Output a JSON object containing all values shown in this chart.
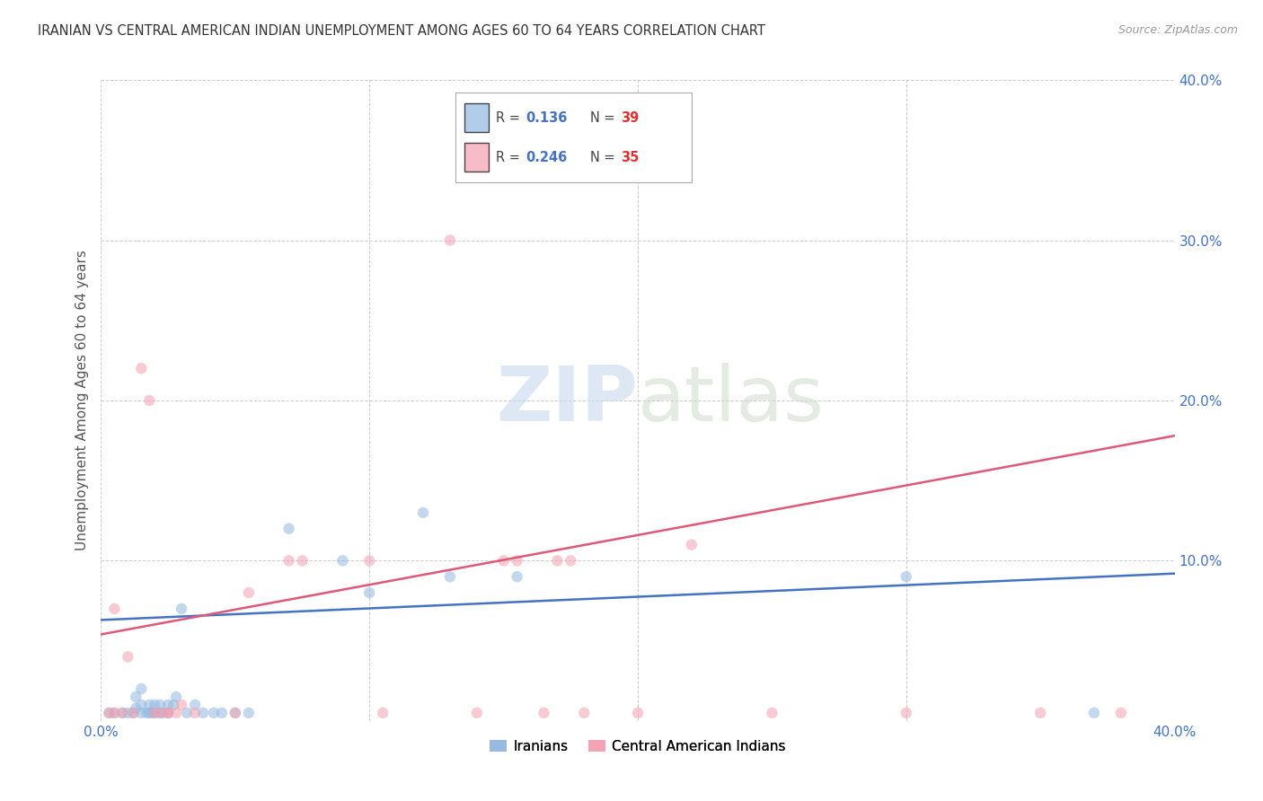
{
  "title": "IRANIAN VS CENTRAL AMERICAN INDIAN UNEMPLOYMENT AMONG AGES 60 TO 64 YEARS CORRELATION CHART",
  "source": "Source: ZipAtlas.com",
  "ylabel": "Unemployment Among Ages 60 to 64 years",
  "xlim": [
    0.0,
    0.4
  ],
  "ylim": [
    0.0,
    0.4
  ],
  "background_color": "#ffffff",
  "grid_color": "#cccccc",
  "iranian_color": "#92b8e0",
  "cai_color": "#f4a0b0",
  "iranian_line_color": "#4472c4",
  "cai_line_color": "#e05878",
  "r_color": "#4472c4",
  "n_color": "#e03030",
  "legend_r_iranian": "0.136",
  "legend_n_iranian": "39",
  "legend_r_cai": "0.246",
  "legend_n_cai": "35",
  "iranian_x": [
    0.003,
    0.005,
    0.008,
    0.01,
    0.012,
    0.013,
    0.013,
    0.015,
    0.015,
    0.015,
    0.017,
    0.018,
    0.018,
    0.019,
    0.02,
    0.02,
    0.022,
    0.022,
    0.023,
    0.025,
    0.025,
    0.027,
    0.028,
    0.03,
    0.032,
    0.035,
    0.038,
    0.042,
    0.045,
    0.05,
    0.055,
    0.07,
    0.09,
    0.1,
    0.12,
    0.13,
    0.155,
    0.3,
    0.37
  ],
  "iranian_y": [
    0.005,
    0.005,
    0.005,
    0.005,
    0.005,
    0.008,
    0.015,
    0.005,
    0.01,
    0.02,
    0.005,
    0.005,
    0.01,
    0.005,
    0.005,
    0.01,
    0.005,
    0.01,
    0.005,
    0.005,
    0.01,
    0.01,
    0.015,
    0.07,
    0.005,
    0.01,
    0.005,
    0.005,
    0.005,
    0.005,
    0.005,
    0.12,
    0.1,
    0.08,
    0.13,
    0.09,
    0.09,
    0.09,
    0.005
  ],
  "cai_x": [
    0.003,
    0.005,
    0.005,
    0.008,
    0.01,
    0.012,
    0.015,
    0.018,
    0.02,
    0.022,
    0.025,
    0.025,
    0.028,
    0.03,
    0.035,
    0.05,
    0.055,
    0.07,
    0.075,
    0.1,
    0.105,
    0.13,
    0.14,
    0.15,
    0.155,
    0.165,
    0.17,
    0.175,
    0.18,
    0.2,
    0.22,
    0.25,
    0.3,
    0.35,
    0.38
  ],
  "cai_y": [
    0.005,
    0.005,
    0.07,
    0.005,
    0.04,
    0.005,
    0.22,
    0.2,
    0.005,
    0.005,
    0.005,
    0.005,
    0.005,
    0.01,
    0.005,
    0.005,
    0.08,
    0.1,
    0.1,
    0.1,
    0.005,
    0.3,
    0.005,
    0.1,
    0.1,
    0.005,
    0.1,
    0.1,
    0.005,
    0.005,
    0.11,
    0.005,
    0.005,
    0.005,
    0.005
  ],
  "iranian_trend_x": [
    0.0,
    0.4
  ],
  "iranian_trend_y": [
    0.063,
    0.092
  ],
  "cai_trend_x": [
    0.0,
    0.4
  ],
  "cai_trend_y": [
    0.054,
    0.178
  ],
  "marker_size": 80,
  "marker_alpha": 0.55,
  "line_width": 1.8
}
